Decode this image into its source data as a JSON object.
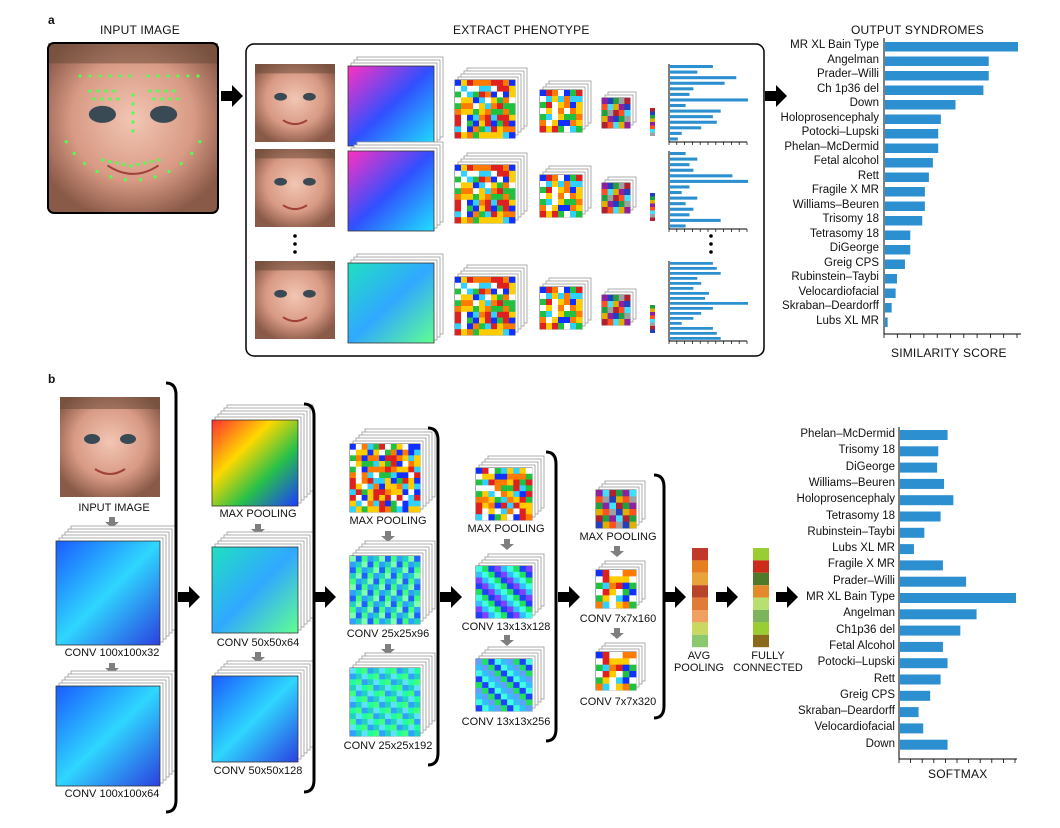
{
  "panel_a": {
    "tag": "a",
    "input_header": "INPUT IMAGE",
    "extract_header": "EXTRACT PHENOTYPE",
    "output_header": "OUTPUT SYNDROMES",
    "similarity_label": "SIMILARITY SCORE",
    "syndromes": [
      {
        "name": "MR XL Bain Type",
        "score": 1.0
      },
      {
        "name": "Angelman",
        "score": 0.78
      },
      {
        "name": "Prader–Willi",
        "score": 0.78
      },
      {
        "name": "Ch 1p36 del",
        "score": 0.74
      },
      {
        "name": "Down",
        "score": 0.53
      },
      {
        "name": "Holoprosencephaly",
        "score": 0.42
      },
      {
        "name": "Potocki–Lupski",
        "score": 0.4
      },
      {
        "name": "Phelan–McDermid",
        "score": 0.4
      },
      {
        "name": "Fetal alcohol",
        "score": 0.36
      },
      {
        "name": "Rett",
        "score": 0.33
      },
      {
        "name": "Fragile X MR",
        "score": 0.3
      },
      {
        "name": "Williams–Beuren",
        "score": 0.3
      },
      {
        "name": "Trisomy 18",
        "score": 0.28
      },
      {
        "name": "Tetrasomy 18",
        "score": 0.19
      },
      {
        "name": "DiGeorge",
        "score": 0.19
      },
      {
        "name": "Greig CPS",
        "score": 0.15
      },
      {
        "name": "Rubinstein–Taybi",
        "score": 0.09
      },
      {
        "name": "Velocardiofacial",
        "score": 0.08
      },
      {
        "name": "Skraban–Deardorff",
        "score": 0.05
      },
      {
        "name": "Lubs XL MR",
        "score": 0.02
      }
    ],
    "vector_bars": [
      [
        0.55,
        0.35,
        0.85,
        0.7,
        0.3,
        0.25,
        1.0,
        0.2,
        0.65,
        0.55,
        0.6,
        0.4,
        0.15,
        0.1
      ],
      [
        0.2,
        0.35,
        0.25,
        0.3,
        0.8,
        1.0,
        0.25,
        0.15,
        0.35,
        0.2,
        0.3,
        0.25,
        0.65,
        0.2
      ],
      [
        0.55,
        0.6,
        0.65,
        0.35,
        0.4,
        0.3,
        0.5,
        0.45,
        1.0,
        0.55,
        0.4,
        0.3,
        0.15,
        0.55,
        0.6,
        0.65
      ]
    ]
  },
  "panel_b": {
    "tag": "b",
    "input_label": "INPUT IMAGE",
    "layers": {
      "c1": "CONV 100x100x32",
      "c2": "CONV 100x100x64",
      "mp1": "MAX POOLING",
      "c3": "CONV 50x50x64",
      "c4": "CONV 50x50x128",
      "mp2": "MAX POOLING",
      "c5": "CONV 25x25x96",
      "c6": "CONV 25x25x192",
      "mp3": "MAX POOLING",
      "c7": "CONV 13x13x128",
      "c8": "CONV 13x13x256",
      "mp4": "MAX POOLING",
      "c9": "CONV 7x7x160",
      "c10": "CONV 7x7x320",
      "avg": "AVG\nPOOLING",
      "fc": "FULLY\nCONNECTED"
    },
    "softmax_label": "SOFTMAX",
    "avg_colors": [
      "#c0392b",
      "#e67e22",
      "#e8a33a",
      "#b8442a",
      "#e07b39",
      "#f0a060",
      "#c8d860",
      "#8cc870"
    ],
    "fc_colors": [
      "#9acd32",
      "#cc2a1a",
      "#4e7a2a",
      "#e58a2a",
      "#b8e070",
      "#7db35a",
      "#9acd32",
      "#8a6a1a"
    ],
    "syndromes": [
      {
        "name": "Phelan–McDermid",
        "score": 0.41
      },
      {
        "name": "Trisomy 18",
        "score": 0.33
      },
      {
        "name": "DiGeorge",
        "score": 0.32
      },
      {
        "name": "Williams–Beuren",
        "score": 0.38
      },
      {
        "name": "Holoprosencephaly",
        "score": 0.46
      },
      {
        "name": "Tetrasomy 18",
        "score": 0.35
      },
      {
        "name": "Rubinstein–Taybi",
        "score": 0.21
      },
      {
        "name": "Lubs XL MR",
        "score": 0.12
      },
      {
        "name": "Fragile X MR",
        "score": 0.37
      },
      {
        "name": "Prader–Willi",
        "score": 0.57
      },
      {
        "name": "MR XL Bain Type",
        "score": 1.0
      },
      {
        "name": "Angelman",
        "score": 0.66
      },
      {
        "name": "Ch1p36 del",
        "score": 0.52
      },
      {
        "name": "Fetal Alcohol",
        "score": 0.37
      },
      {
        "name": "Potocki–Lupski",
        "score": 0.41
      },
      {
        "name": "Rett",
        "score": 0.35
      },
      {
        "name": "Greig CPS",
        "score": 0.26
      },
      {
        "name": "Skraban–Deardorff",
        "score": 0.16
      },
      {
        "name": "Velocardiofacial",
        "score": 0.2
      },
      {
        "name": "Down",
        "score": 0.41
      }
    ]
  },
  "colors": {
    "bar": "#2c8fd0",
    "arrow": "#000000",
    "gray_arrow": "#808080"
  },
  "icons": {
    "arrow": "right-arrow-icon",
    "down_arrow": "down-arrow-icon",
    "ellipsis": "vertical-ellipsis-icon"
  }
}
